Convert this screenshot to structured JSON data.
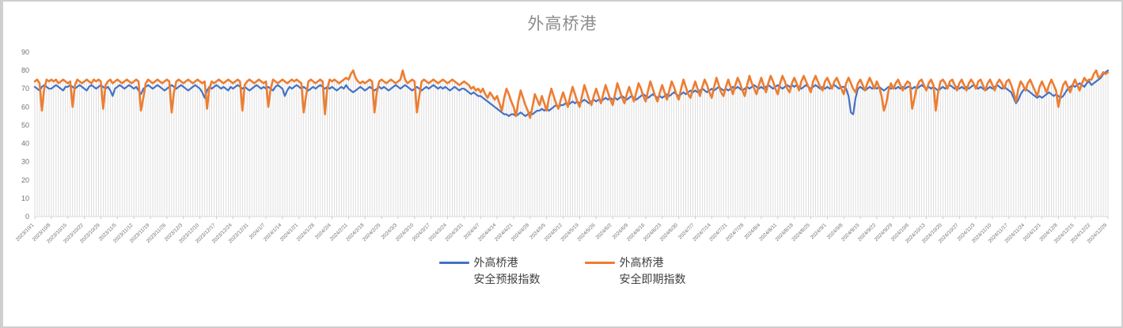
{
  "window": {
    "background": "#ffffff",
    "border_color": "#cfcfcf"
  },
  "chart_data": {
    "type": "line",
    "title": "外高桥港",
    "title_color": "#8c8c8c",
    "x_start": "2023/10/1",
    "x_end": "2024/12/29",
    "x_frequency": "daily",
    "x_tick_interval_days": 7,
    "x_tick_labels": [
      "2023/10/1",
      "2023/10/8",
      "2023/10/15",
      "2023/10/22",
      "2023/10/29",
      "2023/11/5",
      "2023/11/12",
      "2023/11/19",
      "2023/11/26",
      "2023/12/3",
      "2023/12/10",
      "2023/12/17",
      "2023/12/24",
      "2023/12/31",
      "2024/1/7",
      "2024/1/14",
      "2024/1/21",
      "2024/1/28",
      "2024/2/4",
      "2024/2/11",
      "2024/2/18",
      "2024/2/25",
      "2024/3/3",
      "2024/3/10",
      "2024/3/17",
      "2024/3/24",
      "2024/3/31",
      "2024/4/7",
      "2024/4/14",
      "2024/4/21",
      "2024/4/28",
      "2024/5/5",
      "2024/5/12",
      "2024/5/19",
      "2024/5/26",
      "2024/6/2",
      "2024/6/9",
      "2024/6/16",
      "2024/6/23",
      "2024/6/30",
      "2024/7/7",
      "2024/7/14",
      "2024/7/21",
      "2024/7/28",
      "2024/8/4",
      "2024/8/11",
      "2024/8/18",
      "2024/8/25",
      "2024/9/1",
      "2024/9/8",
      "2024/9/15",
      "2024/9/22",
      "2024/9/29",
      "2024/10/6",
      "2024/10/13",
      "2024/10/20",
      "2024/10/27",
      "2024/11/3",
      "2024/11/10",
      "2024/11/17",
      "2024/11/24",
      "2024/12/1",
      "2024/12/8",
      "2024/12/15",
      "2024/12/22",
      "2024/12/29"
    ],
    "ylim": [
      0,
      90
    ],
    "ytick_step": 10,
    "grid": "none",
    "drop_lines": true,
    "drop_line_color": "#dadada",
    "axis_color": "#d9d9d9",
    "tick_color": "#c9c9c9",
    "tick_label_color": "#737373",
    "legend_position": "bottom",
    "series": [
      {
        "name": "外高桥港 安全预报指数",
        "label_lines": [
          "外高桥港",
          "安全预报指数"
        ],
        "color": "#4472C4",
        "values": [
          71,
          70,
          69,
          71,
          72,
          71,
          70,
          70,
          71,
          72,
          71,
          70,
          69,
          71,
          71,
          72,
          71,
          70,
          71,
          72,
          71,
          70,
          69,
          71,
          72,
          71,
          70,
          71,
          72,
          71,
          70,
          71,
          69,
          66,
          70,
          71,
          72,
          71,
          70,
          71,
          72,
          71,
          70,
          71,
          69,
          67,
          70,
          71,
          72,
          71,
          70,
          71,
          72,
          71,
          70,
          69,
          70,
          71,
          72,
          71,
          70,
          71,
          72,
          71,
          70,
          69,
          70,
          71,
          72,
          71,
          70,
          68,
          65,
          69,
          71,
          70,
          71,
          72,
          71,
          70,
          71,
          70,
          69,
          71,
          70,
          71,
          72,
          71,
          70,
          71,
          70,
          69,
          70,
          71,
          72,
          71,
          70,
          71,
          70,
          71,
          70,
          69,
          71,
          72,
          71,
          70,
          66,
          69,
          71,
          70,
          71,
          72,
          71,
          70,
          71,
          70,
          69,
          70,
          71,
          70,
          71,
          72,
          71,
          70,
          71,
          70,
          71,
          70,
          69,
          70,
          71,
          70,
          72,
          70,
          69,
          68,
          69,
          70,
          71,
          70,
          69,
          70,
          71,
          70,
          69,
          70,
          71,
          70,
          71,
          70,
          69,
          70,
          71,
          72,
          71,
          70,
          71,
          72,
          71,
          70,
          69,
          70,
          71,
          70,
          69,
          70,
          71,
          70,
          71,
          72,
          71,
          70,
          71,
          70,
          71,
          70,
          69,
          70,
          71,
          70,
          69,
          70,
          70,
          69,
          68,
          67,
          68,
          67,
          66,
          66,
          65,
          64,
          63,
          62,
          61,
          60,
          59,
          58,
          57,
          56,
          56,
          55,
          56,
          56,
          55,
          56,
          57,
          56,
          55,
          56,
          57,
          56,
          57,
          58,
          58,
          59,
          58,
          59,
          58,
          59,
          60,
          61,
          60,
          61,
          61,
          62,
          61,
          62,
          63,
          62,
          63,
          62,
          63,
          64,
          63,
          62,
          63,
          64,
          63,
          64,
          63,
          64,
          65,
          64,
          65,
          64,
          65,
          64,
          65,
          66,
          65,
          64,
          65,
          66,
          65,
          64,
          65,
          66,
          67,
          66,
          65,
          66,
          67,
          66,
          65,
          66,
          65,
          66,
          67,
          66,
          67,
          68,
          67,
          66,
          67,
          68,
          67,
          68,
          69,
          68,
          69,
          68,
          69,
          70,
          69,
          68,
          69,
          70,
          69,
          70,
          71,
          70,
          69,
          70,
          69,
          70,
          71,
          70,
          71,
          70,
          69,
          70,
          71,
          70,
          71,
          72,
          71,
          70,
          71,
          70,
          71,
          72,
          71,
          70,
          71,
          72,
          71,
          70,
          71,
          72,
          71,
          72,
          71,
          72,
          71,
          70,
          71,
          72,
          71,
          70,
          71,
          72,
          71,
          70,
          71,
          70,
          71,
          70,
          71,
          72,
          71,
          70,
          71,
          71,
          70,
          66,
          57,
          56,
          65,
          70,
          71,
          70,
          69,
          70,
          71,
          70,
          71,
          70,
          71,
          70,
          69,
          70,
          71,
          70,
          71,
          70,
          71,
          70,
          71,
          70,
          71,
          71,
          70,
          71,
          70,
          71,
          72,
          71,
          70,
          71,
          70,
          71,
          70,
          69,
          70,
          71,
          70,
          71,
          72,
          71,
          70,
          71,
          70,
          71,
          70,
          71,
          70,
          71,
          72,
          71,
          70,
          71,
          70,
          69,
          70,
          71,
          70,
          71,
          72,
          71,
          70,
          71,
          70,
          69,
          68,
          65,
          62,
          64,
          67,
          69,
          70,
          69,
          68,
          67,
          66,
          65,
          66,
          65,
          66,
          67,
          68,
          67,
          66,
          67,
          66,
          65,
          66,
          68,
          70,
          71,
          72,
          71,
          72,
          73,
          72,
          71,
          73,
          74,
          72,
          73,
          74,
          75,
          76,
          78,
          79,
          80
        ]
      },
      {
        "name": "外高桥港 安全即期指数",
        "label_lines": [
          "外高桥港",
          "安全即期指数"
        ],
        "color": "#ED7D31",
        "values": [
          74,
          75,
          73,
          58,
          70,
          75,
          74,
          75,
          74,
          75,
          73,
          74,
          75,
          74,
          73,
          74,
          60,
          72,
          75,
          74,
          73,
          74,
          75,
          74,
          73,
          75,
          74,
          75,
          74,
          59,
          72,
          74,
          75,
          73,
          74,
          75,
          74,
          73,
          74,
          75,
          74,
          73,
          74,
          75,
          74,
          58,
          65,
          73,
          75,
          74,
          73,
          74,
          75,
          74,
          73,
          74,
          75,
          74,
          57,
          68,
          74,
          75,
          74,
          73,
          74,
          75,
          74,
          73,
          74,
          75,
          74,
          73,
          74,
          59,
          70,
          74,
          73,
          74,
          75,
          74,
          73,
          74,
          75,
          74,
          73,
          74,
          75,
          74,
          58,
          72,
          74,
          75,
          74,
          73,
          74,
          75,
          74,
          73,
          74,
          60,
          70,
          75,
          74,
          73,
          74,
          75,
          74,
          73,
          74,
          75,
          74,
          75,
          74,
          73,
          57,
          66,
          74,
          75,
          74,
          73,
          74,
          75,
          74,
          56,
          70,
          75,
          74,
          75,
          74,
          73,
          74,
          75,
          76,
          75,
          78,
          80,
          76,
          74,
          73,
          74,
          73,
          74,
          75,
          74,
          57,
          68,
          74,
          75,
          74,
          73,
          74,
          75,
          74,
          73,
          74,
          75,
          80,
          75,
          73,
          74,
          75,
          74,
          57,
          66,
          74,
          75,
          74,
          73,
          74,
          75,
          74,
          73,
          74,
          75,
          74,
          73,
          74,
          75,
          74,
          73,
          72,
          73,
          74,
          73,
          72,
          70,
          71,
          69,
          70,
          68,
          70,
          67,
          65,
          68,
          66,
          64,
          66,
          62,
          58,
          65,
          70,
          67,
          63,
          60,
          55,
          63,
          69,
          65,
          61,
          58,
          54,
          60,
          67,
          64,
          61,
          66,
          62,
          58,
          65,
          70,
          66,
          62,
          59,
          64,
          68,
          64,
          60,
          66,
          71,
          67,
          63,
          60,
          66,
          72,
          68,
          64,
          61,
          66,
          70,
          66,
          62,
          67,
          72,
          68,
          64,
          61,
          67,
          73,
          69,
          65,
          62,
          67,
          71,
          67,
          63,
          68,
          73,
          70,
          66,
          63,
          69,
          74,
          70,
          66,
          63,
          68,
          72,
          68,
          64,
          69,
          74,
          71,
          67,
          64,
          70,
          75,
          71,
          67,
          65,
          70,
          74,
          70,
          66,
          71,
          75,
          72,
          68,
          65,
          71,
          76,
          72,
          68,
          66,
          71,
          75,
          71,
          67,
          72,
          76,
          73,
          69,
          66,
          72,
          77,
          73,
          70,
          67,
          72,
          76,
          72,
          68,
          73,
          77,
          74,
          70,
          67,
          73,
          77,
          74,
          70,
          68,
          73,
          76,
          73,
          69,
          74,
          77,
          74,
          71,
          68,
          74,
          77,
          74,
          71,
          69,
          74,
          76,
          73,
          70,
          74,
          76,
          73,
          70,
          67,
          73,
          76,
          73,
          70,
          68,
          73,
          75,
          72,
          69,
          73,
          76,
          73,
          70,
          74,
          71,
          66,
          58,
          62,
          69,
          73,
          70,
          73,
          75,
          72,
          69,
          72,
          74,
          73,
          59,
          65,
          71,
          74,
          75,
          72,
          69,
          73,
          75,
          72,
          58,
          68,
          74,
          75,
          73,
          70,
          74,
          75,
          72,
          69,
          73,
          75,
          72,
          69,
          73,
          75,
          73,
          70,
          74,
          75,
          72,
          69,
          73,
          75,
          72,
          69,
          73,
          75,
          73,
          70,
          74,
          75,
          72,
          68,
          63,
          70,
          74,
          72,
          69,
          73,
          75,
          72,
          69,
          66,
          71,
          74,
          71,
          68,
          72,
          75,
          72,
          69,
          60,
          67,
          72,
          74,
          71,
          68,
          72,
          75,
          72,
          69,
          73,
          76,
          74,
          75,
          75,
          78,
          80,
          76,
          77,
          79,
          78,
          79
        ]
      }
    ]
  }
}
